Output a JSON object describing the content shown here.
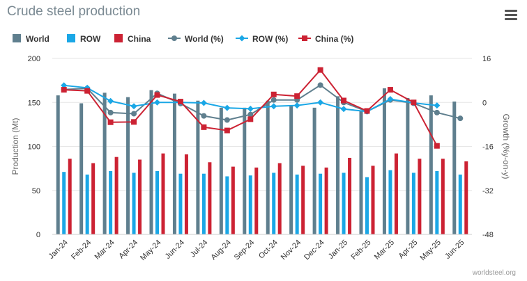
{
  "title": "Crude steel production",
  "credits": "worldsteel.org",
  "menu_icon": "hamburger-menu-icon",
  "chart_data": {
    "type": "bar",
    "title": "Crude steel production",
    "categories": [
      "Jan-24",
      "Feb-24",
      "Mar-24",
      "Apr-24",
      "May-24",
      "Jun-24",
      "Jul-24",
      "Aug-24",
      "Sep-24",
      "Oct-24",
      "Nov-24",
      "Dec-24",
      "Jan-25",
      "Feb-25",
      "Mar-25",
      "Apr-25",
      "May-25",
      "Jun-25"
    ],
    "ylabel": "Production (Mt)",
    "ylim": [
      0,
      200
    ],
    "yticks": [
      "0",
      "50",
      "100",
      "150",
      "200"
    ],
    "y2label": "Growth (%y-on-y)",
    "y2lim": [
      -48,
      16
    ],
    "y2ticks": [
      "-48",
      "-32",
      "-16",
      "0",
      "16"
    ],
    "grid": true,
    "legend_position": "top",
    "series": [
      {
        "name": "World",
        "type": "bar",
        "color": "#5f7f8e",
        "values": [
          158,
          149,
          161,
          156,
          164,
          160,
          152,
          144,
          144,
          152,
          147,
          144,
          157,
          140,
          166,
          155,
          158,
          151
        ]
      },
      {
        "name": "ROW",
        "type": "bar",
        "color": "#1aa7e6",
        "values": [
          71,
          68,
          72,
          70,
          72,
          69,
          69,
          66,
          67,
          70,
          68,
          69,
          70,
          65,
          73,
          70,
          72,
          68
        ]
      },
      {
        "name": "China",
        "type": "bar",
        "color": "#cc2233",
        "values": [
          86,
          81,
          88,
          85,
          92,
          91,
          82,
          77,
          76,
          81,
          78,
          76,
          87,
          78,
          92,
          86,
          86,
          83
        ]
      },
      {
        "name": "World (%)",
        "type": "line",
        "axis": "right",
        "color": "#5f7f8e",
        "marker": "circle",
        "values": [
          4.7,
          5.1,
          -3.7,
          -4.1,
          3.3,
          -0.4,
          -4.9,
          -6.4,
          -4.4,
          0.9,
          0.9,
          6.3,
          0.0,
          -3.3,
          0.9,
          -0.3,
          -3.7,
          -5.8
        ]
      },
      {
        "name": "ROW (%)",
        "type": "line",
        "axis": "right",
        "color": "#1aa7e6",
        "marker": "diamond",
        "values": [
          6.2,
          5.3,
          0.5,
          -1.4,
          0.0,
          0.0,
          -0.2,
          -2.0,
          -2.3,
          -1.4,
          -1.1,
          0.0,
          -2.4,
          -3.3,
          1.2,
          -0.2,
          -1.1,
          null
        ]
      },
      {
        "name": "China (%)",
        "type": "line",
        "axis": "right",
        "color": "#cc2233",
        "marker": "square",
        "values": [
          4.6,
          4.2,
          -7.2,
          -7.1,
          2.7,
          0.3,
          -9.0,
          -10.2,
          -6.1,
          2.9,
          2.3,
          11.8,
          0.7,
          -3.1,
          4.6,
          0.0,
          -15.8,
          null
        ]
      }
    ]
  }
}
